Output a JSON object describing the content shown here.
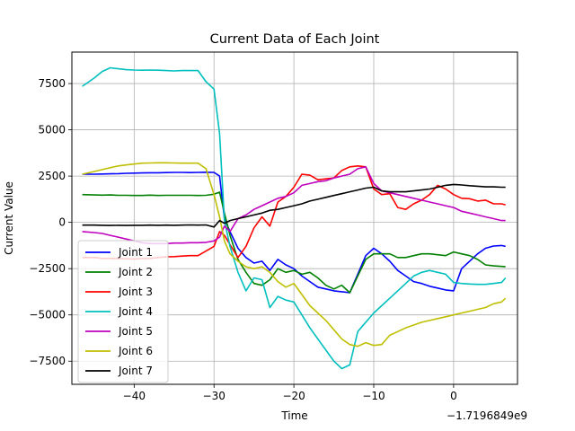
{
  "chart_data": {
    "type": "line",
    "title": "Current Data of Each Joint",
    "xlabel": "Time",
    "ylabel": "Current Value",
    "x_offset_label": "−1.7196849e9",
    "xlim": [
      -47.8,
      8.0
    ],
    "ylim": [
      -8750,
      9200
    ],
    "xticks": [
      -40,
      -30,
      -20,
      -10,
      0
    ],
    "xtick_labels": [
      "−40",
      "−30",
      "−20",
      "−10",
      "0"
    ],
    "yticks": [
      -7500,
      -5000,
      -2500,
      0,
      2500,
      5000,
      7500
    ],
    "ytick_labels": [
      "−7500",
      "−5000",
      "−2500",
      "0",
      "2500",
      "5000",
      "7500"
    ],
    "grid": true,
    "legend_position": "lower-left",
    "x": [
      -46.5,
      -45,
      -44,
      -43,
      -42,
      -41,
      -40,
      -39,
      -38,
      -37,
      -36,
      -35,
      -34,
      -33,
      -32,
      -31,
      -30,
      -29.3,
      -28.7,
      -28,
      -27,
      -26,
      -25,
      -24,
      -23,
      -22,
      -21,
      -20,
      -19,
      -18,
      -17,
      -16,
      -15,
      -14,
      -13,
      -12,
      -11,
      -10,
      -9,
      -8,
      -7,
      -6,
      -5,
      -4,
      -3,
      -2,
      -1,
      0,
      1,
      2,
      3,
      4,
      5,
      6,
      6.5
    ],
    "series": [
      {
        "name": "Joint 1",
        "color": "#0000ff",
        "values": [
          2600,
          2600,
          2610,
          2620,
          2630,
          2650,
          2660,
          2670,
          2680,
          2680,
          2690,
          2700,
          2700,
          2690,
          2700,
          2710,
          2700,
          2500,
          200,
          -500,
          -1400,
          -1900,
          -2200,
          -2100,
          -2600,
          -2000,
          -2300,
          -2500,
          -2900,
          -3200,
          -3500,
          -3600,
          -3700,
          -3750,
          -3800,
          -2800,
          -1800,
          -1400,
          -1700,
          -2100,
          -2600,
          -2900,
          -3200,
          -3300,
          -3450,
          -3550,
          -3650,
          -3700,
          -2500,
          -2100,
          -1700,
          -1400,
          -1280,
          -1250,
          -1300
        ]
      },
      {
        "name": "Joint 2",
        "color": "#008000",
        "values": [
          1500,
          1480,
          1470,
          1480,
          1460,
          1460,
          1450,
          1450,
          1470,
          1450,
          1460,
          1460,
          1460,
          1460,
          1450,
          1460,
          1520,
          1630,
          500,
          -700,
          -2000,
          -2700,
          -3300,
          -3400,
          -3100,
          -2500,
          -2700,
          -2600,
          -2800,
          -2700,
          -3000,
          -3400,
          -3600,
          -3400,
          -3800,
          -2900,
          -2000,
          -1700,
          -1700,
          -1700,
          -1900,
          -1900,
          -1800,
          -1700,
          -1700,
          -1750,
          -1800,
          -1600,
          -1700,
          -1800,
          -2000,
          -2300,
          -2350,
          -2380,
          -2400
        ]
      },
      {
        "name": "Joint 3",
        "color": "#ff0000",
        "values": [
          -1900,
          -1900,
          -1950,
          -1950,
          -1960,
          -1970,
          -1980,
          -1960,
          -1950,
          -1900,
          -1860,
          -1850,
          -1820,
          -1800,
          -1800,
          -1550,
          -1300,
          -500,
          -700,
          -1200,
          -1900,
          -1300,
          -300,
          300,
          -200,
          1100,
          1400,
          1900,
          2600,
          2550,
          2300,
          2350,
          2400,
          2800,
          3000,
          3050,
          3000,
          1800,
          1500,
          1550,
          800,
          700,
          1000,
          1200,
          1500,
          2000,
          1800,
          1500,
          1300,
          1280,
          1150,
          1200,
          1000,
          1000,
          950
        ]
      },
      {
        "name": "Joint 4",
        "color": "#00bfbf",
        "values": [
          7350,
          7800,
          8150,
          8350,
          8300,
          8250,
          8230,
          8220,
          8230,
          8220,
          8200,
          8180,
          8200,
          8200,
          8200,
          7600,
          7200,
          4800,
          100,
          -1300,
          -2700,
          -3700,
          -3000,
          -3100,
          -4600,
          -4000,
          -4200,
          -4300,
          -5000,
          -5700,
          -6300,
          -6900,
          -7500,
          -7900,
          -7700,
          -5900,
          -5400,
          -4900,
          -4500,
          -4100,
          -3700,
          -3300,
          -2900,
          -2700,
          -2600,
          -2700,
          -2800,
          -3250,
          -3300,
          -3330,
          -3350,
          -3350,
          -3300,
          -3250,
          -3000
        ]
      },
      {
        "name": "Joint 5",
        "color": "#bf00bf",
        "values": [
          -500,
          -550,
          -600,
          -700,
          -800,
          -900,
          -1000,
          -1100,
          -1150,
          -1150,
          -1150,
          -1120,
          -1120,
          -1100,
          -1100,
          -1080,
          -1000,
          -800,
          -200,
          -500,
          200,
          400,
          700,
          900,
          1100,
          1300,
          1400,
          1600,
          2000,
          2100,
          2200,
          2250,
          2400,
          2500,
          2600,
          2900,
          3000,
          2100,
          1700,
          1600,
          1500,
          1400,
          1300,
          1200,
          1100,
          1000,
          900,
          800,
          600,
          500,
          400,
          300,
          200,
          100,
          100
        ]
      },
      {
        "name": "Joint 6",
        "color": "#bfbf00",
        "values": [
          2600,
          2750,
          2850,
          2950,
          3050,
          3100,
          3150,
          3200,
          3210,
          3220,
          3220,
          3210,
          3200,
          3200,
          3200,
          2900,
          1500,
          300,
          -1000,
          -1700,
          -2100,
          -2400,
          -2500,
          -2400,
          -2700,
          -3200,
          -3500,
          -3300,
          -3900,
          -4500,
          -4900,
          -5300,
          -5800,
          -6300,
          -6600,
          -6700,
          -6500,
          -6650,
          -6600,
          -6100,
          -5900,
          -5700,
          -5550,
          -5400,
          -5300,
          -5200,
          -5100,
          -5000,
          -4900,
          -4800,
          -4700,
          -4600,
          -4400,
          -4300,
          -4100
        ]
      },
      {
        "name": "Joint 7",
        "color": "#000000",
        "values": [
          -150,
          -150,
          -160,
          -170,
          -160,
          -170,
          -160,
          -160,
          -150,
          -160,
          -150,
          -160,
          -150,
          -140,
          -150,
          -140,
          -250,
          100,
          -50,
          100,
          200,
          300,
          400,
          500,
          650,
          700,
          800,
          900,
          1000,
          1150,
          1250,
          1350,
          1450,
          1550,
          1650,
          1750,
          1850,
          1900,
          1700,
          1650,
          1650,
          1650,
          1700,
          1750,
          1800,
          1900,
          2000,
          2050,
          2020,
          1980,
          1950,
          1920,
          1920,
          1900,
          1900
        ]
      }
    ]
  }
}
